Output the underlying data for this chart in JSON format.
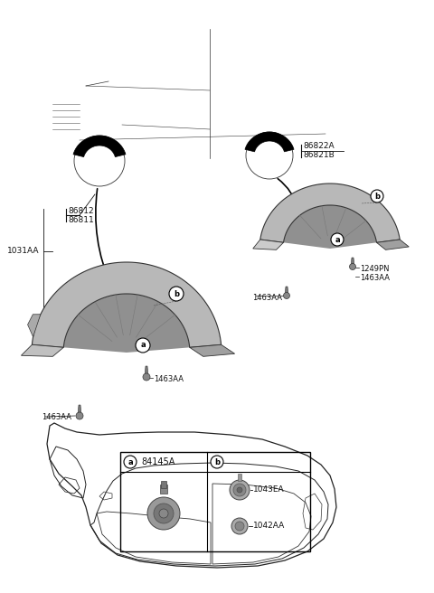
{
  "bg_color": "#ffffff",
  "fig_width": 4.8,
  "fig_height": 6.56,
  "dpi": 100,
  "labels": {
    "front_parts_1": "86812",
    "front_parts_2": "86811",
    "left_label": "1031AA",
    "rear_parts_1": "86822A",
    "rear_parts_2": "86821B",
    "front_bolt1": "1463AA",
    "front_bolt2": "1463AA",
    "rear_bolt1": "1463AA",
    "rear_bolt2": "1249PN",
    "rear_bolt3": "1463AA",
    "legend_a_part": "84145A",
    "legend_b_part1": "1043EA",
    "legend_b_part2": "1042AA"
  }
}
